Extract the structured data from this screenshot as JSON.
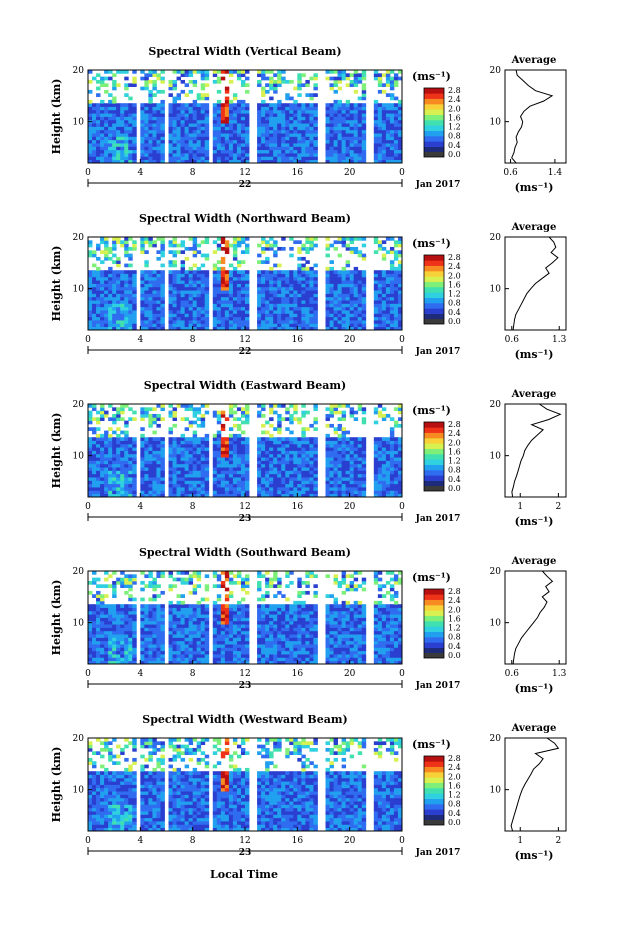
{
  "figure": {
    "xlabel_bottom": "Local Time",
    "panels": [
      {
        "title": "Spectral Width (Vertical Beam)",
        "date_label": "22",
        "avg_xticks": [
          "0.6",
          "1.4"
        ],
        "avg_xlim": [
          0.5,
          1.6
        ]
      },
      {
        "title": "Spectral Width (Northward Beam)",
        "date_label": "22",
        "avg_xticks": [
          "0.6",
          "1.3"
        ],
        "avg_xlim": [
          0.5,
          1.4
        ]
      },
      {
        "title": "Spectral Width (Eastward Beam)",
        "date_label": "23",
        "avg_xticks": [
          "1",
          "2"
        ],
        "avg_xlim": [
          0.6,
          2.2
        ]
      },
      {
        "title": "Spectral Width (Southward Beam)",
        "date_label": "23",
        "avg_xticks": [
          "0.6",
          "1.3"
        ],
        "avg_xlim": [
          0.5,
          1.4
        ]
      },
      {
        "title": "Spectral Width (Westward Beam)",
        "date_label": "23",
        "avg_xticks": [
          "1",
          "2"
        ],
        "avg_xlim": [
          0.6,
          2.2
        ]
      }
    ],
    "month_label": "Jan 2017",
    "avg_title": "Average",
    "unit": "(ms⁻¹)",
    "ylabel": "Height (km)",
    "yticks": [
      "20",
      "10"
    ],
    "xticks": [
      "0",
      "4",
      "8",
      "12",
      "16",
      "20",
      "0"
    ],
    "colorbar_ticks": [
      "2.8",
      "2.4",
      "2.0",
      "1.6",
      "1.2",
      "0.8",
      "0.4",
      "0.0"
    ]
  },
  "chart_data": {
    "type": "heatmap",
    "x_range": [
      0,
      24
    ],
    "y_range": [
      2,
      20
    ],
    "colorbar_range": [
      0.0,
      3.0
    ],
    "colormap": [
      "#1e2a7a",
      "#2a3fd0",
      "#2f6cf0",
      "#22a0f0",
      "#2fd0e0",
      "#40e0b0",
      "#7ef07a",
      "#d8f050",
      "#f8d038",
      "#f88a22",
      "#ee3318",
      "#b81010"
    ],
    "gap_hours": [
      [
        0.9,
        1.0
      ],
      [
        3.6,
        4.1
      ],
      [
        5.9,
        6.2
      ],
      [
        9.2,
        9.5
      ],
      [
        12.4,
        12.8
      ],
      [
        17.6,
        18.0
      ],
      [
        21.3,
        21.7
      ]
    ],
    "average_profiles": [
      {
        "name": "Vertical",
        "height": [
          2,
          3,
          4,
          5,
          6,
          7,
          8,
          9,
          10,
          11,
          12,
          13,
          14,
          15,
          16,
          17,
          18,
          19,
          20
        ],
        "value": [
          0.7,
          0.62,
          0.66,
          0.68,
          0.72,
          0.7,
          0.74,
          0.8,
          0.82,
          0.78,
          0.84,
          0.95,
          1.2,
          1.35,
          1.05,
          0.92,
          0.82,
          0.72,
          0.7
        ]
      },
      {
        "name": "Northward",
        "height": [
          2,
          3,
          4,
          5,
          6,
          7,
          8,
          9,
          10,
          11,
          12,
          13,
          14,
          15,
          16,
          17,
          18,
          19,
          20
        ],
        "value": [
          0.62,
          0.63,
          0.64,
          0.66,
          0.7,
          0.74,
          0.78,
          0.82,
          0.88,
          0.95,
          1.05,
          1.15,
          1.1,
          1.2,
          1.28,
          1.18,
          1.25,
          1.22,
          1.15
        ]
      },
      {
        "name": "Eastward",
        "height": [
          2,
          3,
          4,
          5,
          6,
          7,
          8,
          9,
          10,
          11,
          12,
          13,
          14,
          15,
          16,
          17,
          18,
          19,
          20
        ],
        "value": [
          0.8,
          0.78,
          0.82,
          0.85,
          0.9,
          0.94,
          0.98,
          1.02,
          1.08,
          1.12,
          1.2,
          1.3,
          1.45,
          1.6,
          1.3,
          1.75,
          2.05,
          1.7,
          1.5
        ]
      },
      {
        "name": "Southward",
        "height": [
          2,
          3,
          4,
          5,
          6,
          7,
          8,
          9,
          10,
          11,
          12,
          13,
          14,
          15,
          16,
          17,
          18,
          19,
          20
        ],
        "value": [
          0.62,
          0.63,
          0.64,
          0.66,
          0.7,
          0.74,
          0.8,
          0.86,
          0.92,
          0.98,
          1.02,
          1.08,
          1.12,
          1.05,
          1.15,
          1.1,
          1.2,
          1.12,
          1.05
        ]
      },
      {
        "name": "Westward",
        "height": [
          2,
          3,
          4,
          5,
          6,
          7,
          8,
          9,
          10,
          11,
          12,
          13,
          14,
          15,
          16,
          17,
          18,
          19,
          20
        ],
        "value": [
          0.8,
          0.76,
          0.8,
          0.84,
          0.88,
          0.92,
          0.96,
          1.0,
          1.05,
          1.12,
          1.2,
          1.28,
          1.35,
          1.5,
          1.6,
          1.4,
          2.0,
          1.9,
          1.7
        ]
      }
    ]
  }
}
